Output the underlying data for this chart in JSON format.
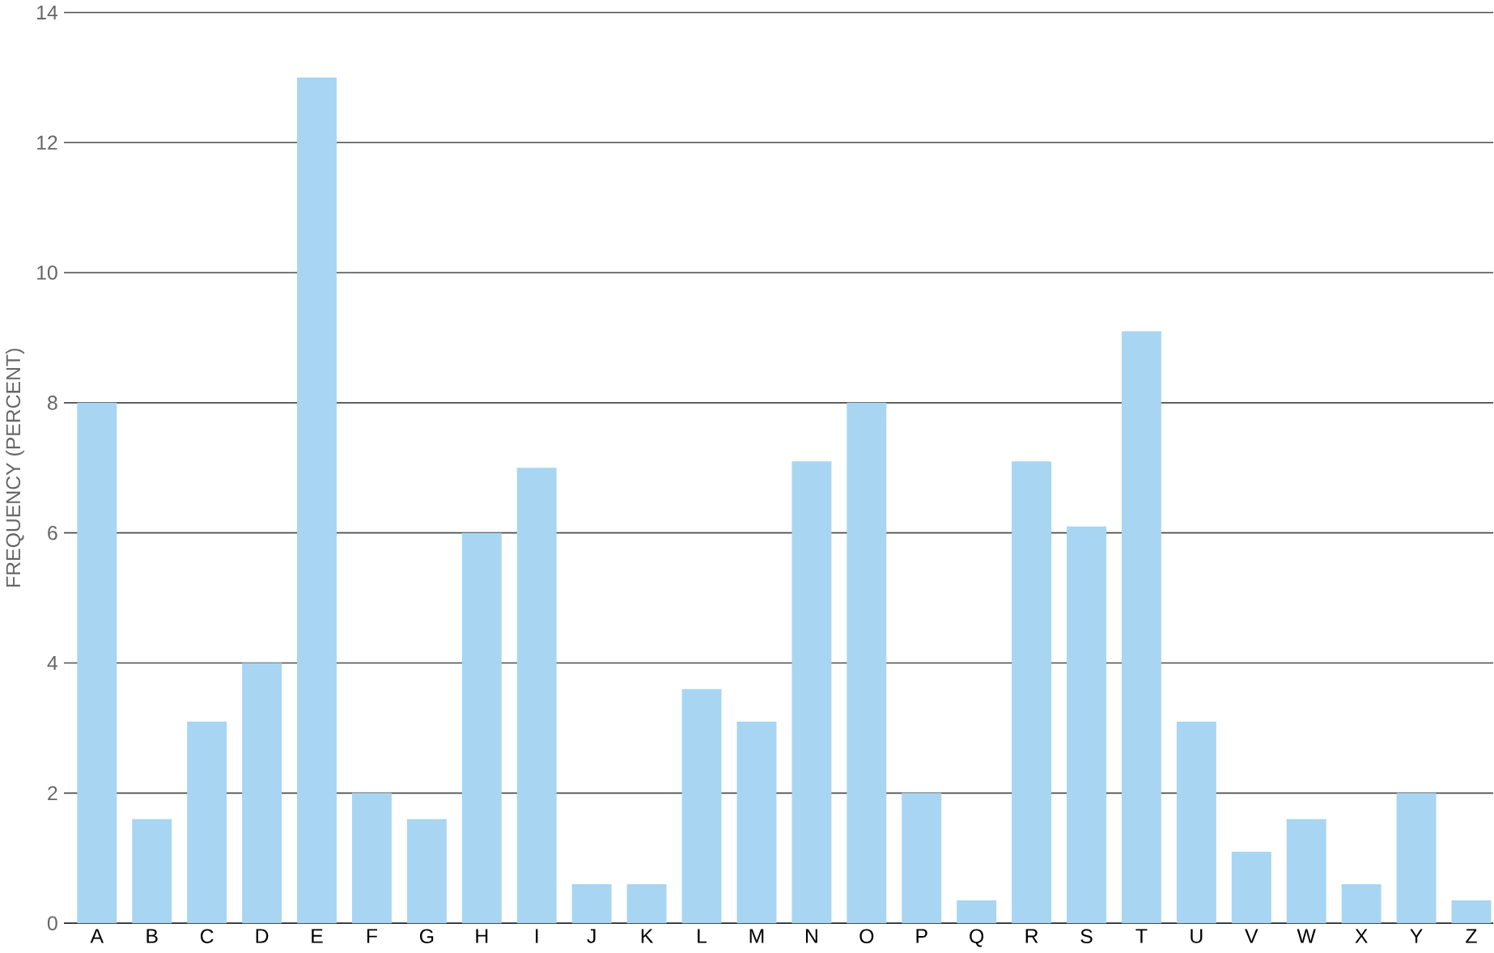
{
  "chart_data": {
    "type": "bar",
    "ylabel": "FREQUENCY (PERCENT)",
    "categories": [
      "A",
      "B",
      "C",
      "D",
      "E",
      "F",
      "G",
      "H",
      "I",
      "J",
      "K",
      "L",
      "M",
      "N",
      "O",
      "P",
      "Q",
      "R",
      "S",
      "T",
      "U",
      "V",
      "W",
      "X",
      "Y",
      "Z"
    ],
    "values": [
      8,
      1.6,
      3.1,
      4,
      13,
      2,
      1.6,
      6,
      7,
      0.6,
      0.6,
      3.6,
      3.1,
      7.1,
      8,
      2,
      0.35,
      7.1,
      6.1,
      9.1,
      3.1,
      1.1,
      1.6,
      0.6,
      2,
      0.35
    ],
    "color": "#a8d5f2",
    "ylim": [
      0,
      14
    ],
    "yticks": [
      0,
      2,
      4,
      6,
      8,
      10,
      12,
      14
    ],
    "grid": "y"
  }
}
